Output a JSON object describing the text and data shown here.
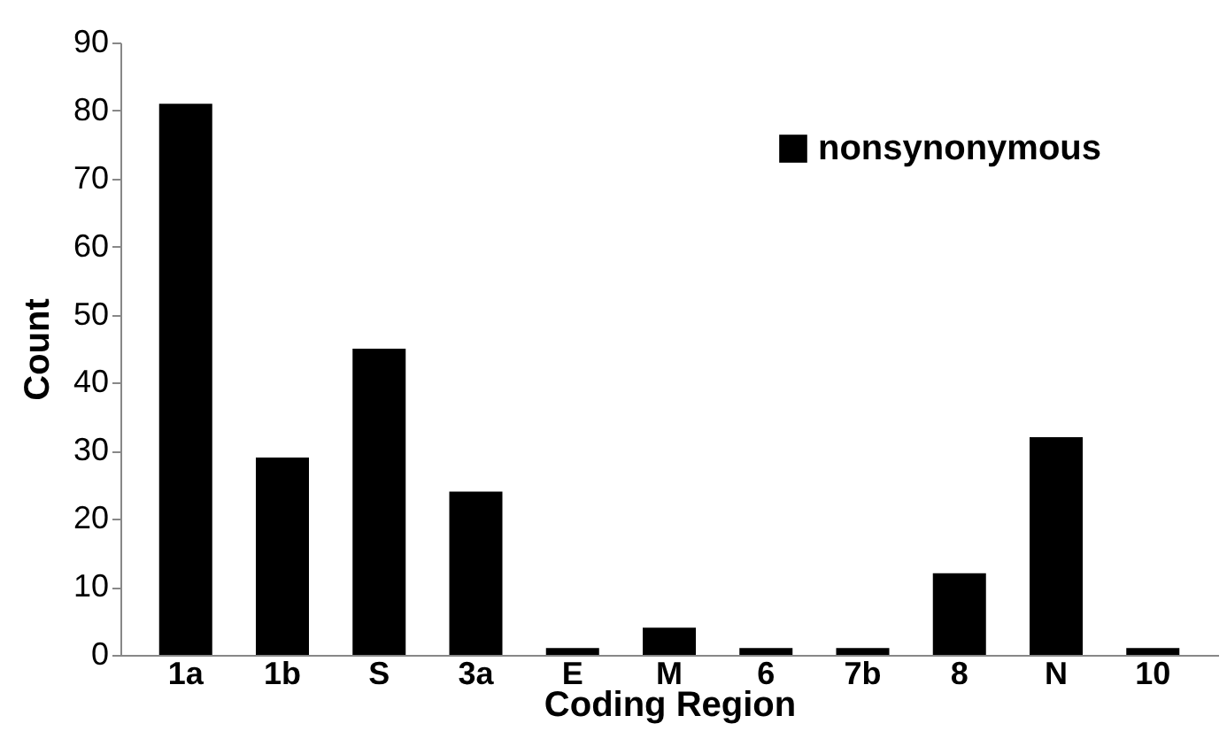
{
  "chart_data": {
    "type": "bar",
    "xlabel": "Coding Region",
    "ylabel": "Count",
    "categories": [
      "1a",
      "1b",
      "S",
      "3a",
      "E",
      "M",
      "6",
      "7b",
      "8",
      "N",
      "10"
    ],
    "series": [
      {
        "name": "nonsynonymous",
        "color": "#000000",
        "values": [
          81,
          29,
          45,
          24,
          1,
          4,
          1,
          1,
          12,
          32,
          1
        ]
      }
    ],
    "ylim": [
      0,
      90
    ],
    "yticks": [
      0,
      10,
      20,
      30,
      40,
      50,
      60,
      70,
      80,
      90
    ],
    "grid": false,
    "legend": "top right"
  }
}
